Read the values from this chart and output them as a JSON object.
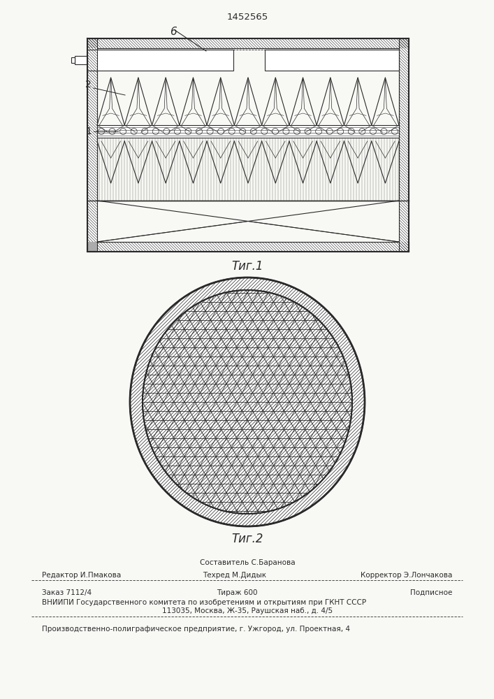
{
  "patent_number": "1452565",
  "fig1_label": "Τиг.1",
  "fig2_label": "Τиг.2",
  "label_6": "6",
  "label_2": "2",
  "label_1": "1",
  "text_sostavitel": "Составитель С.Баранова",
  "text_redaktor": "Редактор И.Пмакова",
  "text_tehred": "Техред М.Дидык",
  "text_korrektor": "Корректор Э.Лончакова",
  "text_zakaz": "Заказ 7112/4",
  "text_tirazh": "Тираж 600",
  "text_podpisnoe": "Подписное",
  "text_vniip1": "ВНИИПИ Государственного комитета по изобретениям и открытиям при ГКНТ СССР",
  "text_vniip2": "113035, Москва, Ж-35, Раушская наб., д. 4/5",
  "text_proizv": "Производственно-полиграфическое предприятие, г. Ужгород, ул. Проектная, 4",
  "bg_color": "#f8f8f5",
  "line_color": "#2a2a2a"
}
